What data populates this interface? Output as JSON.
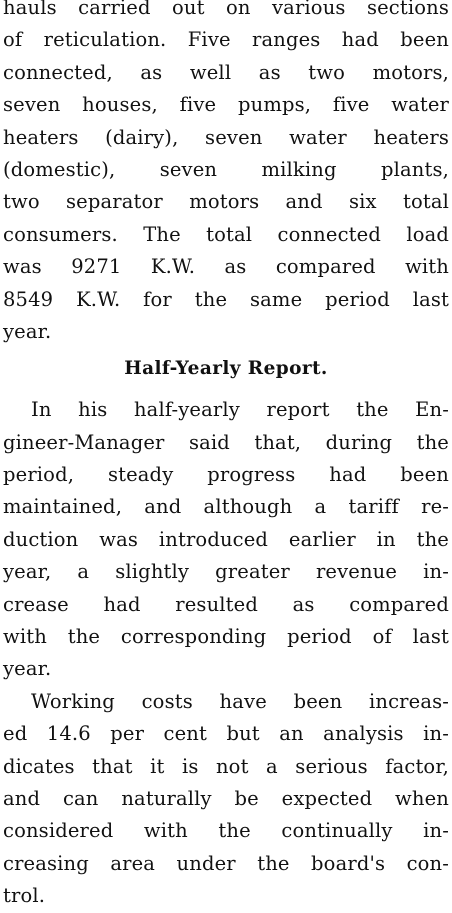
{
  "article": {
    "paragraph_1": [
      "hauls carried out on various sections",
      "of reticulation. Five ranges had been",
      "connected, as well as two motors,",
      "seven houses, five pumps, five water",
      "heaters (dairy), seven water heaters",
      "(domestic), seven milking plants,",
      "two separator motors and six total",
      "consumers. The total connected load",
      "was 9271 K.W. as compared with",
      "8549 K.W. for the same period last",
      "year."
    ],
    "heading": "Half-Yearly Report.",
    "paragraph_2": [
      "In his half-yearly report the En-",
      "gineer-Manager said that, during the",
      "period, steady progress had been",
      "maintained, and although a tariff re-",
      "duction was introduced earlier in the",
      "year, a slightly greater revenue in-",
      "crease had resulted as compared",
      "with the corresponding period of last",
      "year."
    ],
    "paragraph_3": [
      "Working costs have been increas-",
      "ed 14.6 per cent but an analysis in-",
      "dicates that it is not a serious factor,",
      "and can naturally be expected when",
      "considered with the continually in-",
      "creasing area under the board's con-",
      "trol."
    ]
  }
}
